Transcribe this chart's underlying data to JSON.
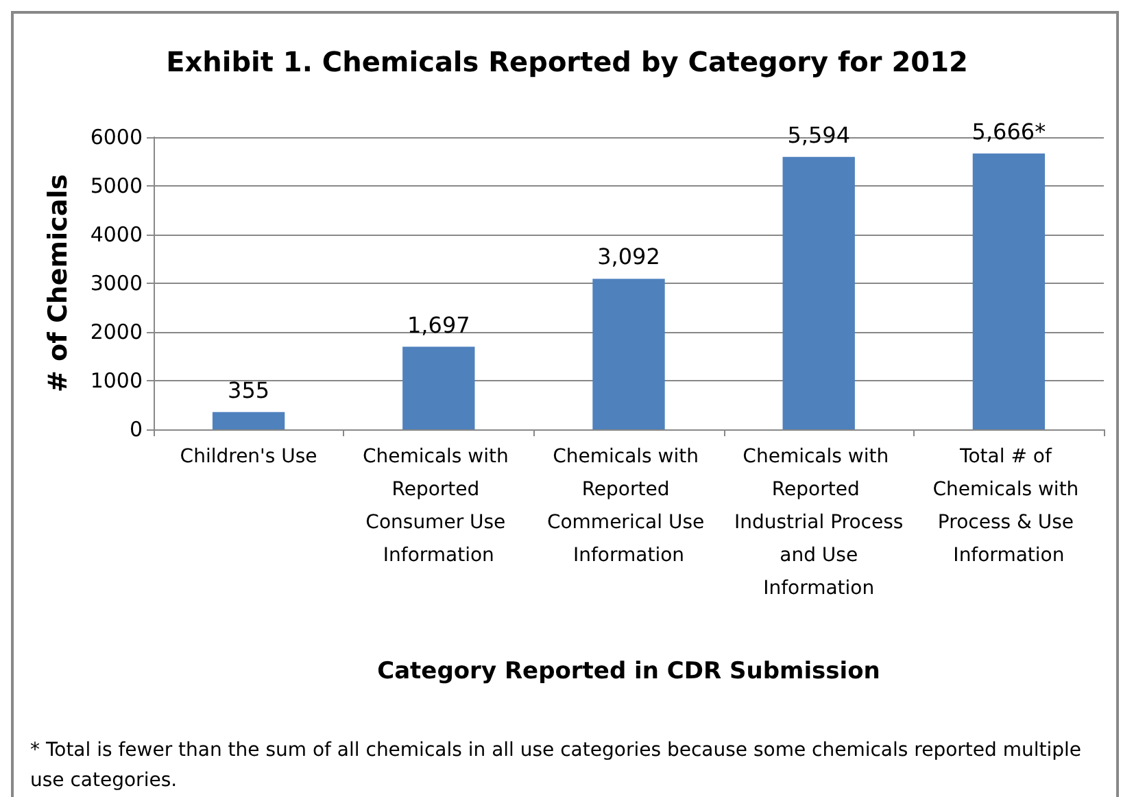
{
  "chart_data": {
    "type": "bar",
    "title": "Exhibit 1. Chemicals Reported by Category for 2012",
    "xlabel": "Category Reported in CDR Submission",
    "ylabel": "# of Chemicals",
    "categories": [
      "Children's Use",
      "Chemicals with Reported Consumer Use Information",
      "Chemicals with Reported Commerical Use Information",
      "Chemicals with Reported Industrial Process and Use Information",
      "Total # of Chemicals with Process & Use Information"
    ],
    "values": [
      355,
      1697,
      3092,
      5594,
      5666
    ],
    "value_labels": [
      "355",
      "1,697",
      "3,092",
      "5,594",
      "5,666*"
    ],
    "color": "#4f81bd",
    "ylim": [
      0,
      6000
    ],
    "yticks": [
      0,
      1000,
      2000,
      3000,
      4000,
      5000,
      6000
    ],
    "grid": "y",
    "annotations": [
      "* Total is fewer than the sum of all chemicals in all use categories because some chemicals reported multiple use categories."
    ]
  }
}
